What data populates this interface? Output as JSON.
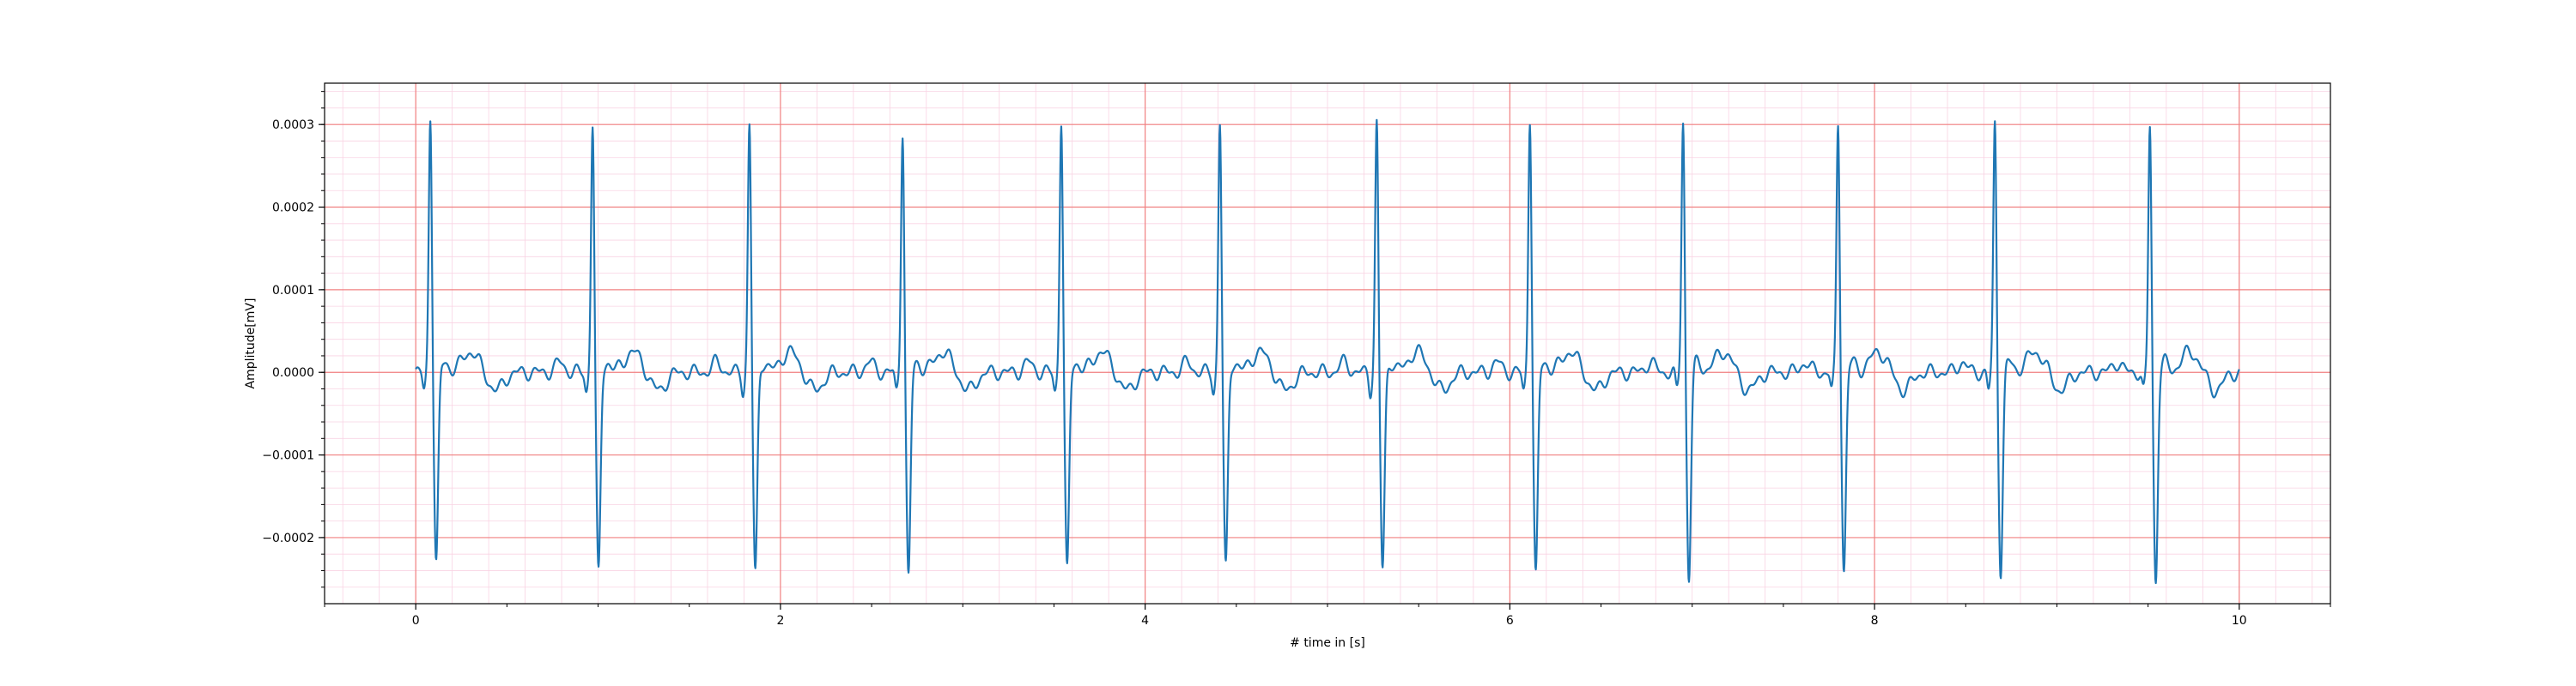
{
  "chart_data": {
    "type": "line",
    "title": "",
    "xlabel": "# time in [s]",
    "ylabel": "Amplitude[mV]",
    "xlim": [
      -0.5,
      10.5
    ],
    "ylim": [
      -0.00028,
      0.00035
    ],
    "x_ticks": [
      0,
      2,
      4,
      6,
      8,
      10
    ],
    "x_tick_labels": [
      "0",
      "2",
      "4",
      "6",
      "8",
      "10"
    ],
    "y_ticks": [
      -0.0002,
      -0.0001,
      0.0,
      0.0001,
      0.0002,
      0.0003
    ],
    "y_tick_labels": [
      "−0.0002",
      "−0.0001",
      "0.0000",
      "0.0001",
      "0.0002",
      "0.0003"
    ],
    "grid": {
      "major": true,
      "minor": true,
      "major_color": "#f08080",
      "minor_color": "#f9d3e3",
      "x_minor_step": 0.2,
      "y_minor_step": 2e-05
    },
    "line_color": "#1f77b4",
    "series": [
      {
        "beats": [
          {
            "r_time": 0.08,
            "r_peak": 0.000315,
            "s_trough": -0.000232
          },
          {
            "r_time": 0.97,
            "r_peak": 0.000303,
            "s_trough": -0.000245
          },
          {
            "r_time": 1.83,
            "r_peak": 0.000303,
            "s_trough": -0.000245
          },
          {
            "r_time": 2.67,
            "r_peak": 0.000295,
            "s_trough": -0.00025
          },
          {
            "r_time": 3.54,
            "r_peak": 0.000308,
            "s_trough": -0.000242
          },
          {
            "r_time": 4.41,
            "r_peak": 0.000305,
            "s_trough": -0.000238
          },
          {
            "r_time": 5.27,
            "r_peak": 0.000305,
            "s_trough": -0.00024
          },
          {
            "r_time": 6.11,
            "r_peak": 0.000312,
            "s_trough": -0.000248
          },
          {
            "r_time": 6.95,
            "r_peak": 0.000308,
            "s_trough": -0.00025
          },
          {
            "r_time": 7.8,
            "r_peak": 0.000305,
            "s_trough": -0.00024
          },
          {
            "r_time": 8.66,
            "r_peak": 0.000305,
            "s_trough": -0.000242
          },
          {
            "r_time": 9.51,
            "r_peak": 0.000302,
            "s_trough": -0.000253
          }
        ],
        "x_start": 0.0,
        "x_end": 10.0,
        "t_wave_amplitude": 2.5e-05
      }
    ]
  }
}
